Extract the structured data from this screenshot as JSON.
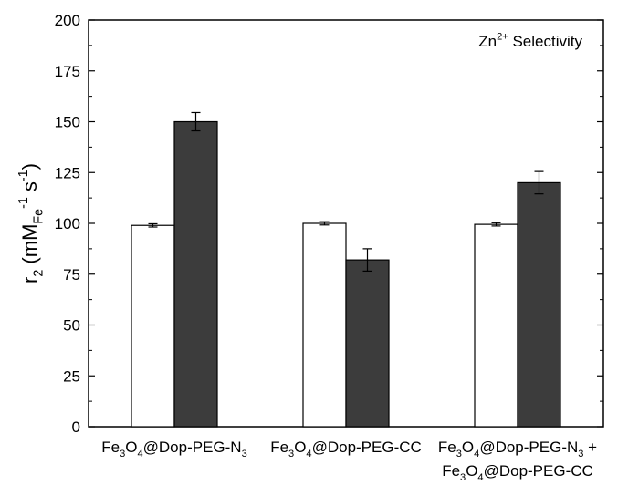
{
  "chart_data": {
    "type": "bar",
    "ylim": [
      0,
      200
    ],
    "yticks": [
      0,
      25,
      50,
      75,
      100,
      125,
      150,
      175,
      200
    ],
    "grid": false,
    "categories": [
      {
        "parts": [
          [
            "Fe",
            ""
          ],
          [
            "3",
            "sub"
          ],
          [
            "O",
            ""
          ],
          [
            "4",
            "sub"
          ],
          [
            "@Dop-PEG-N",
            ""
          ],
          [
            "3",
            "sub"
          ]
        ],
        "text": "Fe3O4@Dop-PEG-N3"
      },
      {
        "parts": [
          [
            "Fe",
            ""
          ],
          [
            "3",
            "sub"
          ],
          [
            "O",
            ""
          ],
          [
            "4",
            "sub"
          ],
          [
            "@Dop-PEG-CC",
            ""
          ]
        ],
        "text": "Fe3O4@Dop-PEG-CC"
      },
      {
        "parts": [
          [
            "Fe",
            ""
          ],
          [
            "3",
            "sub"
          ],
          [
            "O",
            ""
          ],
          [
            "4",
            "sub"
          ],
          [
            "@Dop-PEG-N",
            ""
          ],
          [
            "3",
            "sub"
          ],
          [
            " +",
            ""
          ]
        ],
        "parts2": [
          [
            "Fe",
            ""
          ],
          [
            "3",
            "sub"
          ],
          [
            "O",
            ""
          ],
          [
            "4",
            "sub"
          ],
          [
            "@Dop-PEG-CC",
            ""
          ]
        ],
        "text": "Fe3O4@Dop-PEG-N3 + Fe3O4@Dop-PEG-CC"
      }
    ],
    "series": [
      {
        "fill": "#ffffff",
        "values": [
          99,
          100,
          99.5
        ],
        "errors": [
          0.8,
          0.8,
          0.8
        ]
      },
      {
        "fill": "#3c3c3c",
        "values": [
          150,
          82,
          120
        ],
        "errors": [
          4.5,
          5.5,
          5.5
        ]
      }
    ],
    "ylabel_parts": [
      [
        "r",
        ""
      ],
      [
        "2",
        "sub"
      ],
      [
        " (mM",
        ""
      ],
      [
        "Fe",
        "sub"
      ],
      [
        "-1",
        "sup"
      ],
      [
        " s",
        ""
      ],
      [
        "-1",
        "sup"
      ],
      [
        ")",
        ""
      ]
    ],
    "ylabel_text": "r2 (mMFe-1 s-1)",
    "annotation_parts": [
      [
        "Zn",
        ""
      ],
      [
        "2+",
        "sup"
      ],
      [
        " Selectivity",
        ""
      ]
    ],
    "annotation_text": "Zn2+ Selectivity",
    "annotation_position": "top-right"
  }
}
